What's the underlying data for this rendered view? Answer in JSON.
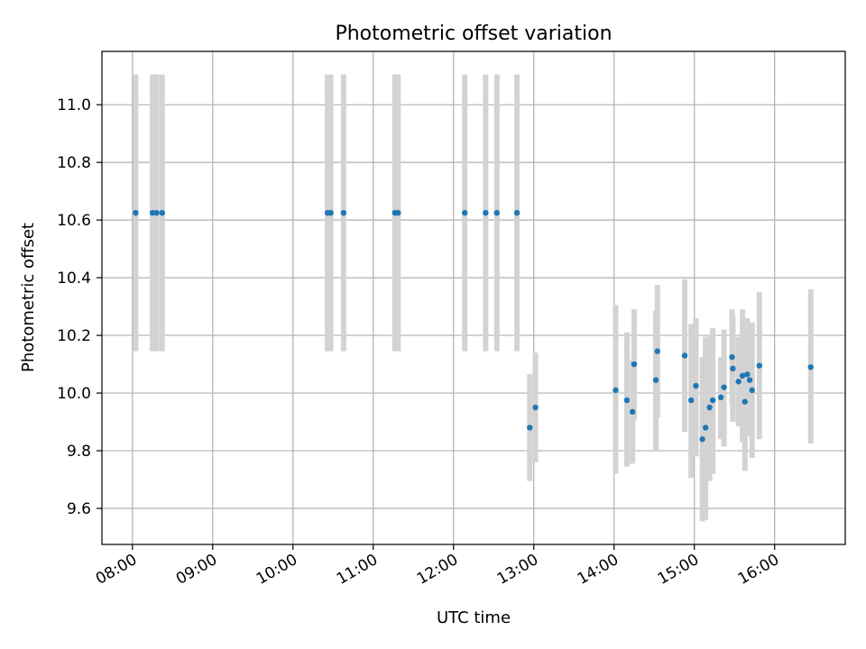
{
  "chart_data": {
    "type": "scatter",
    "title": "Photometric offset variation",
    "xlabel": "UTC time",
    "ylabel": "Photometric offset",
    "grid": true,
    "xlim_hours": [
      7.62,
      16.88
    ],
    "ylim": [
      9.475,
      11.185
    ],
    "x_ticks": [
      {
        "hour": 8,
        "label": "08:00"
      },
      {
        "hour": 9,
        "label": "09:00"
      },
      {
        "hour": 10,
        "label": "10:00"
      },
      {
        "hour": 11,
        "label": "11:00"
      },
      {
        "hour": 12,
        "label": "12:00"
      },
      {
        "hour": 13,
        "label": "13:00"
      },
      {
        "hour": 14,
        "label": "14:00"
      },
      {
        "hour": 15,
        "label": "15:00"
      },
      {
        "hour": 16,
        "label": "16:00"
      }
    ],
    "y_ticks": [
      {
        "value": 9.6,
        "label": "9.6"
      },
      {
        "value": 9.8,
        "label": "9.8"
      },
      {
        "value": 10.0,
        "label": "10.0"
      },
      {
        "value": 10.2,
        "label": "10.2"
      },
      {
        "value": 10.4,
        "label": "10.4"
      },
      {
        "value": 10.6,
        "label": "10.6"
      },
      {
        "value": 10.8,
        "label": "10.8"
      },
      {
        "value": 11.0,
        "label": "11.0"
      }
    ],
    "marker_color": "#1f77b4",
    "errorbar_color": "#d3d3d3",
    "points": [
      {
        "t": 8.04,
        "y": 10.625,
        "lo": 10.145,
        "hi": 11.105
      },
      {
        "t": 8.25,
        "y": 10.625,
        "lo": 10.145,
        "hi": 11.105
      },
      {
        "t": 8.3,
        "y": 10.625,
        "lo": 10.145,
        "hi": 11.105
      },
      {
        "t": 8.37,
        "y": 10.625,
        "lo": 10.145,
        "hi": 11.105
      },
      {
        "t": 10.43,
        "y": 10.625,
        "lo": 10.145,
        "hi": 11.105
      },
      {
        "t": 10.47,
        "y": 10.625,
        "lo": 10.145,
        "hi": 11.105
      },
      {
        "t": 10.63,
        "y": 10.625,
        "lo": 10.145,
        "hi": 11.105
      },
      {
        "t": 11.27,
        "y": 10.625,
        "lo": 10.145,
        "hi": 11.105
      },
      {
        "t": 11.31,
        "y": 10.625,
        "lo": 10.145,
        "hi": 11.105
      },
      {
        "t": 12.14,
        "y": 10.625,
        "lo": 10.145,
        "hi": 11.105
      },
      {
        "t": 12.4,
        "y": 10.625,
        "lo": 10.145,
        "hi": 11.105
      },
      {
        "t": 12.54,
        "y": 10.625,
        "lo": 10.145,
        "hi": 11.105
      },
      {
        "t": 12.79,
        "y": 10.625,
        "lo": 10.145,
        "hi": 11.105
      },
      {
        "t": 12.95,
        "y": 9.88,
        "lo": 9.695,
        "hi": 10.065
      },
      {
        "t": 13.02,
        "y": 9.95,
        "lo": 9.76,
        "hi": 10.14
      },
      {
        "t": 14.02,
        "y": 10.01,
        "lo": 9.72,
        "hi": 10.305
      },
      {
        "t": 14.16,
        "y": 9.975,
        "lo": 9.745,
        "hi": 10.21
      },
      {
        "t": 14.23,
        "y": 9.935,
        "lo": 9.755,
        "hi": 10.115
      },
      {
        "t": 14.25,
        "y": 10.1,
        "lo": 9.905,
        "hi": 10.29
      },
      {
        "t": 14.52,
        "y": 10.045,
        "lo": 9.8,
        "hi": 10.285
      },
      {
        "t": 14.54,
        "y": 10.145,
        "lo": 9.915,
        "hi": 10.375
      },
      {
        "t": 14.88,
        "y": 10.13,
        "lo": 9.865,
        "hi": 10.395
      },
      {
        "t": 14.96,
        "y": 9.975,
        "lo": 9.705,
        "hi": 10.24
      },
      {
        "t": 15.02,
        "y": 10.025,
        "lo": 9.78,
        "hi": 10.26
      },
      {
        "t": 15.1,
        "y": 9.84,
        "lo": 9.555,
        "hi": 10.125
      },
      {
        "t": 15.14,
        "y": 9.88,
        "lo": 9.56,
        "hi": 10.195
      },
      {
        "t": 15.19,
        "y": 9.95,
        "lo": 9.695,
        "hi": 10.2
      },
      {
        "t": 15.23,
        "y": 9.975,
        "lo": 9.72,
        "hi": 10.225
      },
      {
        "t": 15.33,
        "y": 9.985,
        "lo": 9.84,
        "hi": 10.125
      },
      {
        "t": 15.37,
        "y": 10.02,
        "lo": 9.815,
        "hi": 10.22
      },
      {
        "t": 15.47,
        "y": 10.125,
        "lo": 9.96,
        "hi": 10.29
      },
      {
        "t": 15.48,
        "y": 10.085,
        "lo": 9.9,
        "hi": 10.27
      },
      {
        "t": 15.55,
        "y": 10.04,
        "lo": 9.885,
        "hi": 10.195
      },
      {
        "t": 15.6,
        "y": 10.06,
        "lo": 9.83,
        "hi": 10.29
      },
      {
        "t": 15.63,
        "y": 9.97,
        "lo": 9.73,
        "hi": 10.21
      },
      {
        "t": 15.66,
        "y": 10.065,
        "lo": 9.87,
        "hi": 10.26
      },
      {
        "t": 15.69,
        "y": 10.045,
        "lo": 9.85,
        "hi": 10.235
      },
      {
        "t": 15.72,
        "y": 10.01,
        "lo": 9.775,
        "hi": 10.245
      },
      {
        "t": 15.81,
        "y": 10.095,
        "lo": 9.84,
        "hi": 10.35
      },
      {
        "t": 16.45,
        "y": 10.09,
        "lo": 9.825,
        "hi": 10.36
      }
    ]
  }
}
